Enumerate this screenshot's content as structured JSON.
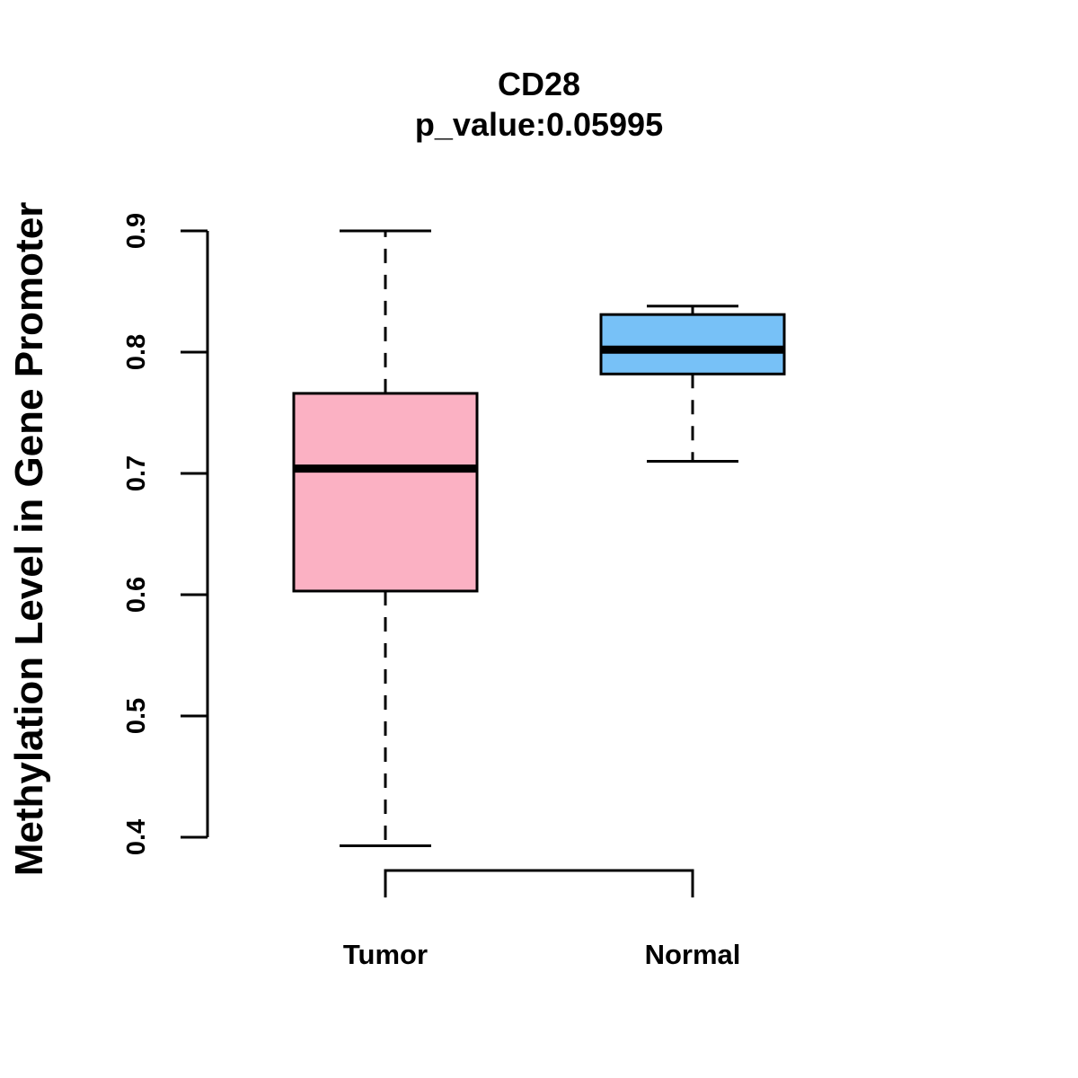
{
  "chart_data": {
    "type": "boxplot",
    "title": "CD28",
    "subtitle": "p_value:0.05995",
    "xlabel": "",
    "ylabel": "Methylation Level in Gene Promoter",
    "ylim": [
      0.4,
      0.9
    ],
    "yticks": [
      "0.4",
      "0.5",
      "0.6",
      "0.7",
      "0.8",
      "0.9"
    ],
    "grid": false,
    "categories": [
      "Tumor",
      "Normal"
    ],
    "boxes": [
      {
        "name": "Tumor",
        "min": 0.393,
        "q1": 0.603,
        "median": 0.704,
        "q3": 0.766,
        "max": 0.9,
        "color": "#FBB1C3"
      },
      {
        "name": "Normal",
        "min": 0.71,
        "q1": 0.782,
        "median": 0.802,
        "q3": 0.831,
        "max": 0.838,
        "color": "#77C1F7"
      }
    ],
    "comparison_bracket": [
      "Tumor",
      "Normal"
    ]
  }
}
